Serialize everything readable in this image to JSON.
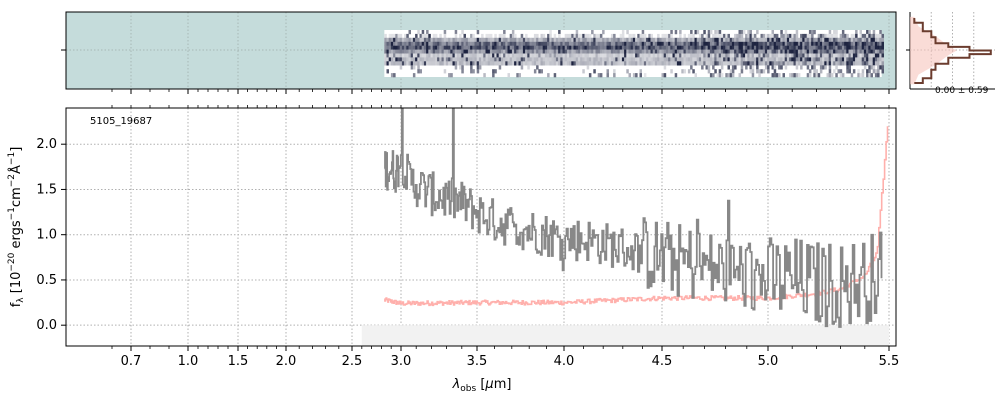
{
  "figure": {
    "object_id": "5105_19687",
    "side_stat": "0.00 ± 0.59"
  },
  "chart_data": [
    {
      "type": "heatmap",
      "name": "2d-spectrum",
      "x_axis": "wavelength",
      "xlim": [
        0.55,
        5.55
      ],
      "background_color": "#c5dcdb",
      "trace_start": 2.83,
      "trace_end": 5.47,
      "cmap_dark": "#1d2340",
      "cmap_light": "#ffffff"
    },
    {
      "type": "line",
      "name": "spectrum-1d",
      "xlabel": "λ_obs [μm]",
      "ylabel": "f_λ [10^-20 ergs^-1 cm^-2 Å^-1]",
      "ylim": [
        -0.23,
        2.4
      ],
      "grid": true,
      "x_ticks": [
        0.7,
        1.0,
        1.5,
        2.0,
        2.5,
        3.0,
        3.5,
        4.0,
        4.5,
        5.0,
        5.5
      ],
      "x_tick_labels": [
        "0.7",
        "1.0",
        "1.5",
        "2.0",
        "2.5",
        "3.0",
        "3.5",
        "4.0",
        "4.5",
        "5.0",
        "5.5"
      ],
      "y_ticks": [
        0.0,
        0.5,
        1.0,
        1.5,
        2.0
      ],
      "y_tick_labels": [
        "0.0",
        "0.5",
        "1.0",
        "1.5",
        "2.0"
      ],
      "series": [
        {
          "role": "flux",
          "color": "#888888",
          "x": [
            2.83,
            2.95,
            3.0,
            3.05,
            3.1,
            3.2,
            3.3,
            3.4,
            3.5,
            3.6,
            3.7,
            3.8,
            3.9,
            4.0,
            4.1,
            4.2,
            4.3,
            4.4,
            4.5,
            4.6,
            4.7,
            4.8,
            4.9,
            5.0,
            5.1,
            5.2,
            5.3,
            5.4,
            5.47
          ],
          "y": [
            1.75,
            1.7,
            1.85,
            1.6,
            1.55,
            1.45,
            1.4,
            1.35,
            1.25,
            1.15,
            1.1,
            1.05,
            1.0,
            0.95,
            0.95,
            0.9,
            0.85,
            0.8,
            0.75,
            0.7,
            0.65,
            0.6,
            0.55,
            0.5,
            0.5,
            0.45,
            0.45,
            0.5,
            0.6
          ]
        },
        {
          "role": "error",
          "color": "#ffb0ac",
          "x": [
            2.83,
            3.0,
            3.5,
            4.0,
            4.5,
            5.0,
            5.2,
            5.3,
            5.4,
            5.45,
            5.5
          ],
          "y": [
            0.28,
            0.24,
            0.25,
            0.25,
            0.3,
            0.3,
            0.35,
            0.4,
            0.55,
            0.8,
            2.4
          ]
        }
      ],
      "shaded_region": {
        "x": [
          2.6,
          5.5
        ],
        "y": [
          -0.23,
          0.0
        ],
        "color": "#f0f0f0"
      }
    },
    {
      "type": "line",
      "name": "side-profile",
      "xlim": [
        0,
        1
      ],
      "xlabel": "",
      "ylabel": "",
      "series": [
        {
          "role": "model",
          "color": "#6b3c2e",
          "x": [
            0.05,
            0.15,
            0.25,
            0.3,
            0.45,
            0.7,
            0.95,
            0.7,
            0.45,
            0.3,
            0.25,
            0.15,
            0.05
          ],
          "y": [
            -2.7,
            -2.3,
            -1.6,
            -1.1,
            -0.6,
            -0.3,
            0.0,
            0.3,
            0.6,
            1.1,
            1.6,
            2.3,
            2.7
          ]
        },
        {
          "role": "data",
          "color": "#f6c4bd",
          "x": [
            0.05,
            0.1,
            0.3,
            0.45,
            0.55,
            0.45,
            0.3,
            0.1,
            0.05
          ],
          "y": [
            -2.8,
            -2.0,
            -1.2,
            -0.4,
            0.0,
            0.4,
            1.2,
            2.0,
            2.8
          ]
        }
      ]
    }
  ]
}
